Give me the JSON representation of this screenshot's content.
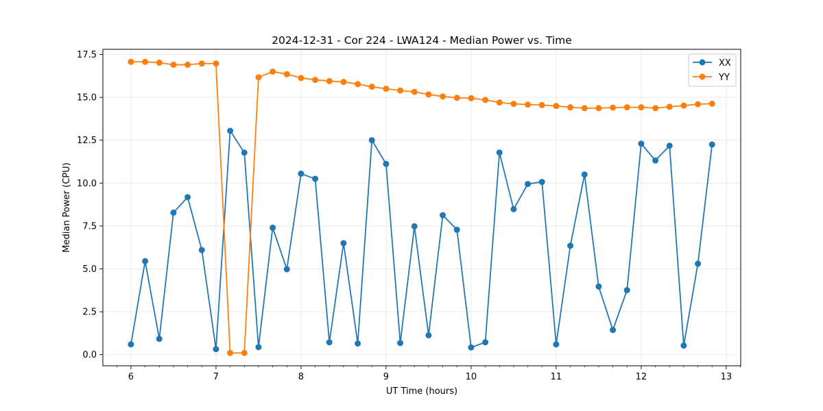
{
  "chart_data": {
    "type": "line",
    "title": "2024-12-31 - Cor 224 - LWA124 - Median Power vs. Time",
    "xlabel": "UT Time (hours)",
    "ylabel": "Median Power (CPU)",
    "xlim": [
      5.67,
      13.17
    ],
    "ylim": [
      -0.65,
      17.8
    ],
    "xticks": [
      6,
      7,
      8,
      9,
      10,
      11,
      12,
      13
    ],
    "xtick_labels": [
      "6",
      "7",
      "8",
      "9",
      "10",
      "11",
      "12",
      "13"
    ],
    "yticks": [
      0.0,
      2.5,
      5.0,
      7.5,
      10.0,
      12.5,
      15.0,
      17.5
    ],
    "ytick_labels": [
      "0.0",
      "2.5",
      "5.0",
      "7.5",
      "10.0",
      "12.5",
      "15.0",
      "17.5"
    ],
    "grid": true,
    "legend_position": "top-right",
    "x": [
      6.0,
      6.1667,
      6.3333,
      6.5,
      6.6667,
      6.8333,
      7.0,
      7.1667,
      7.3333,
      7.5,
      7.6667,
      7.8333,
      8.0,
      8.1667,
      8.3333,
      8.5,
      8.6667,
      8.8333,
      9.0,
      9.1667,
      9.3333,
      9.5,
      9.6667,
      9.8333,
      10.0,
      10.1667,
      10.3333,
      10.5,
      10.6667,
      10.8333,
      11.0,
      11.1667,
      11.3333,
      11.5,
      11.6667,
      11.8333,
      12.0,
      12.1667,
      12.3333,
      12.5,
      12.6667,
      12.8333
    ],
    "series": [
      {
        "name": "XX",
        "color": "#1f77b4",
        "values": [
          0.6,
          5.45,
          0.92,
          8.28,
          9.18,
          6.1,
          0.32,
          13.05,
          11.78,
          0.44,
          7.4,
          4.98,
          10.55,
          10.25,
          0.72,
          6.5,
          0.65,
          12.5,
          11.12,
          0.68,
          7.48,
          1.13,
          8.13,
          7.28,
          0.42,
          0.72,
          11.78,
          8.48,
          9.95,
          10.07,
          0.6,
          6.35,
          10.5,
          3.97,
          1.44,
          3.76,
          12.3,
          11.32,
          12.18,
          0.53,
          5.3,
          12.25
        ]
      },
      {
        "name": "YY",
        "color": "#ff7f0e",
        "values": [
          17.07,
          17.07,
          17.02,
          16.9,
          16.9,
          16.97,
          16.97,
          0.1,
          0.1,
          16.17,
          16.5,
          16.35,
          16.13,
          16.02,
          15.95,
          15.9,
          15.77,
          15.62,
          15.5,
          15.4,
          15.32,
          15.17,
          15.05,
          14.97,
          14.95,
          14.85,
          14.7,
          14.62,
          14.58,
          14.55,
          14.5,
          14.42,
          14.37,
          14.37,
          14.4,
          14.42,
          14.42,
          14.37,
          14.45,
          14.52,
          14.6,
          14.63
        ]
      }
    ]
  }
}
